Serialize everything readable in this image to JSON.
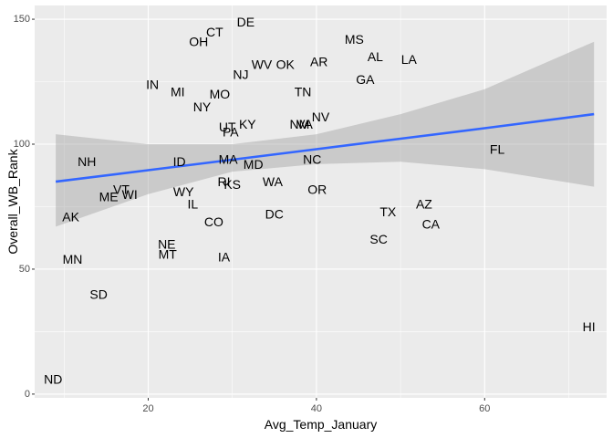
{
  "chart_data": {
    "type": "scatter",
    "xlabel": "Avg_Temp_January",
    "ylabel": "Overall_WB_Rank",
    "xlim": [
      6.5,
      74.5
    ],
    "ylim": [
      -1.5,
      155.5
    ],
    "x_ticks": [
      20,
      40,
      60
    ],
    "y_ticks": [
      0,
      50,
      100,
      150
    ],
    "x_tick_labels": [
      "20",
      "40",
      "60"
    ],
    "y_tick_labels": [
      "0",
      "50",
      "100",
      "150"
    ],
    "grid": true,
    "colors": {
      "panel": "#ebebeb",
      "grid": "#ffffff",
      "band": "#999999",
      "line": "#3366ff",
      "text": "#000000",
      "tick": "#4d4d4d"
    },
    "smooth": {
      "method": "linear regression with confidence band",
      "x": [
        9,
        20,
        30,
        40,
        50,
        60,
        73
      ],
      "fit": [
        85.0,
        89.6,
        93.8,
        98.0,
        102.2,
        106.4,
        112.0
      ],
      "lower": [
        67.0,
        80.0,
        89.0,
        92.0,
        93.0,
        90.0,
        83.0
      ],
      "upper": [
        104.0,
        100.0,
        100.0,
        104.0,
        112.0,
        122.0,
        141.0
      ]
    },
    "points": [
      {
        "label": "DE",
        "x": 31.6,
        "y": 149
      },
      {
        "label": "CT",
        "x": 27.9,
        "y": 145
      },
      {
        "label": "OH",
        "x": 26.0,
        "y": 141
      },
      {
        "label": "MS",
        "x": 44.5,
        "y": 142
      },
      {
        "label": "AL",
        "x": 47.0,
        "y": 135
      },
      {
        "label": "LA",
        "x": 51.0,
        "y": 134
      },
      {
        "label": "AR",
        "x": 40.3,
        "y": 133
      },
      {
        "label": "OK",
        "x": 36.3,
        "y": 132
      },
      {
        "label": "WV",
        "x": 33.5,
        "y": 132
      },
      {
        "label": "NJ",
        "x": 31.0,
        "y": 128
      },
      {
        "label": "GA",
        "x": 45.8,
        "y": 126
      },
      {
        "label": "IN",
        "x": 20.5,
        "y": 124
      },
      {
        "label": "MI",
        "x": 23.5,
        "y": 121
      },
      {
        "label": "MO",
        "x": 28.5,
        "y": 120
      },
      {
        "label": "TN",
        "x": 38.4,
        "y": 121
      },
      {
        "label": "NY",
        "x": 26.4,
        "y": 115
      },
      {
        "label": "NV",
        "x": 40.5,
        "y": 111
      },
      {
        "label": "NM",
        "x": 38.0,
        "y": 108
      },
      {
        "label": "VA",
        "x": 38.6,
        "y": 108
      },
      {
        "label": "KY",
        "x": 31.8,
        "y": 108
      },
      {
        "label": "UT",
        "x": 29.4,
        "y": 107
      },
      {
        "label": "PA",
        "x": 29.8,
        "y": 105
      },
      {
        "label": "FL",
        "x": 61.5,
        "y": 98
      },
      {
        "label": "NH",
        "x": 12.7,
        "y": 93
      },
      {
        "label": "ID",
        "x": 23.7,
        "y": 93
      },
      {
        "label": "MA",
        "x": 29.5,
        "y": 94
      },
      {
        "label": "MD",
        "x": 32.5,
        "y": 92
      },
      {
        "label": "NC",
        "x": 39.5,
        "y": 94
      },
      {
        "label": "WA",
        "x": 34.8,
        "y": 85
      },
      {
        "label": "RI",
        "x": 29.0,
        "y": 85
      },
      {
        "label": "KS",
        "x": 30.0,
        "y": 84
      },
      {
        "label": "OR",
        "x": 40.1,
        "y": 82
      },
      {
        "label": "VT",
        "x": 16.8,
        "y": 82
      },
      {
        "label": "WI",
        "x": 17.8,
        "y": 80
      },
      {
        "label": "ME",
        "x": 15.3,
        "y": 79
      },
      {
        "label": "WY",
        "x": 24.2,
        "y": 81
      },
      {
        "label": "IL",
        "x": 25.3,
        "y": 76
      },
      {
        "label": "AZ",
        "x": 52.8,
        "y": 76
      },
      {
        "label": "TX",
        "x": 48.5,
        "y": 73
      },
      {
        "label": "DC",
        "x": 35.0,
        "y": 72
      },
      {
        "label": "AK",
        "x": 10.8,
        "y": 71
      },
      {
        "label": "CO",
        "x": 27.8,
        "y": 69
      },
      {
        "label": "CA",
        "x": 53.6,
        "y": 68
      },
      {
        "label": "SC",
        "x": 47.4,
        "y": 62
      },
      {
        "label": "NE",
        "x": 22.2,
        "y": 60
      },
      {
        "label": "MT",
        "x": 22.3,
        "y": 56
      },
      {
        "label": "IA",
        "x": 29.0,
        "y": 55
      },
      {
        "label": "MN",
        "x": 11.0,
        "y": 54
      },
      {
        "label": "SD",
        "x": 14.1,
        "y": 40
      },
      {
        "label": "HI",
        "x": 72.4,
        "y": 27
      },
      {
        "label": "ND",
        "x": 8.7,
        "y": 6
      }
    ]
  }
}
